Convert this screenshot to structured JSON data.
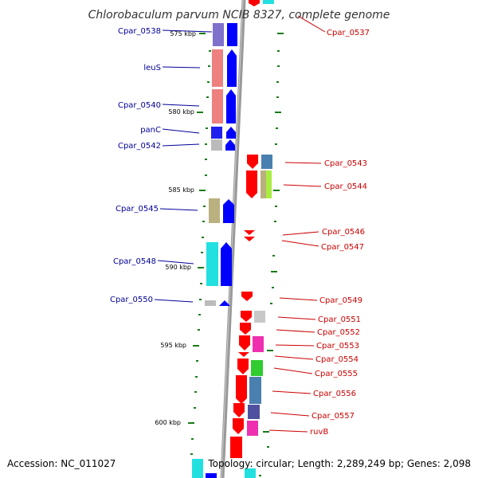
{
  "title": "Chlorobaculum parvum NCIB 8327, complete genome",
  "footer": {
    "accession": "Accession: NC_011027",
    "topology": "Topology: circular; Length: 2,289,249 bp; Genes: 2,098"
  },
  "colors": {
    "forward": "#0000ff",
    "reverse": "#ff0000",
    "left_label": "#000099",
    "right_label": "#cc0000",
    "tick": "#1a7a1a",
    "backbone": "#999999"
  },
  "kbp_ticks": [
    "575 kbp",
    "580 kbp",
    "585 kbp",
    "590 kbp",
    "595 kbp",
    "600 kbp"
  ],
  "left_genes": [
    "Cpar_0538",
    "leuS",
    "Cpar_0540",
    "panC",
    "Cpar_0542",
    "Cpar_0545",
    "Cpar_0548",
    "Cpar_0550"
  ],
  "right_genes": [
    "Cpar_0537",
    "Cpar_0543",
    "Cpar_0544",
    "Cpar_0546",
    "Cpar_0547",
    "Cpar_0549",
    "Cpar_0551",
    "Cpar_0552",
    "Cpar_0553",
    "Cpar_0554",
    "Cpar_0555",
    "Cpar_0556",
    "Cpar_0557",
    "ruvB"
  ]
}
